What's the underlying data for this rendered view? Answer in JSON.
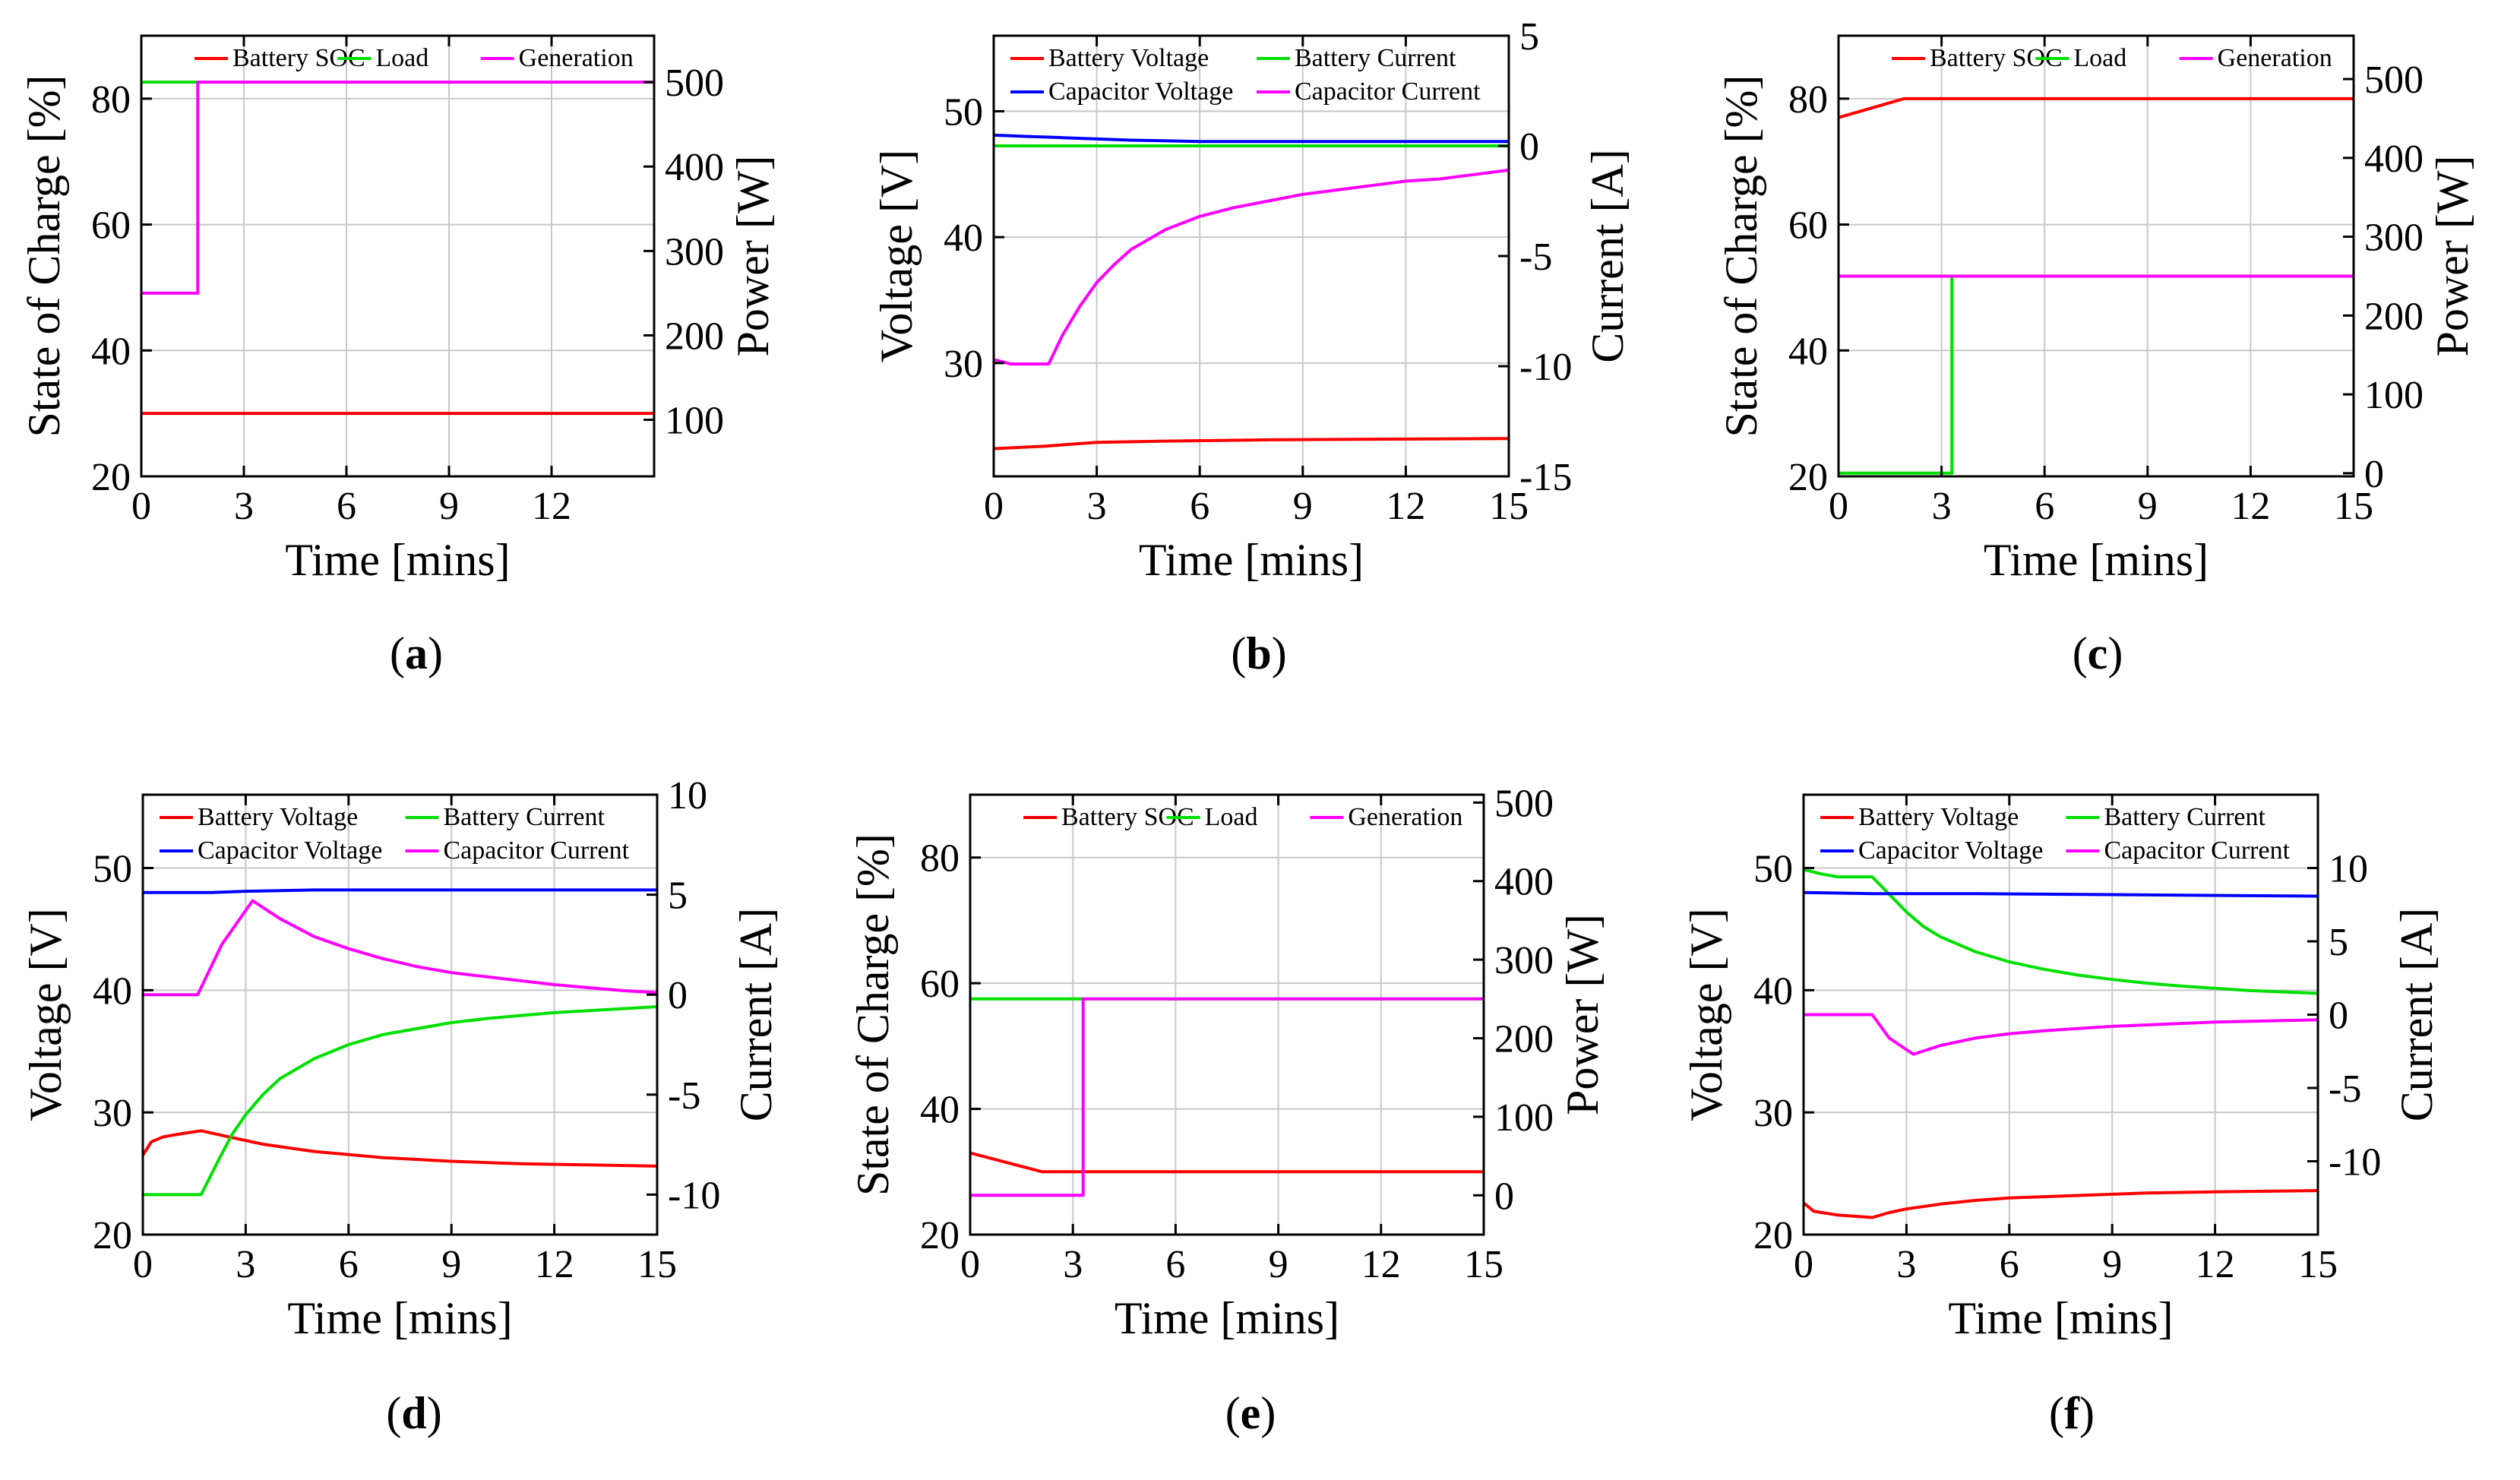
{
  "colors": {
    "red": "#ff0000",
    "green": "#00e000",
    "blue": "#0000ff",
    "magenta": "#ff00ff"
  },
  "chart_data": [
    {
      "id": "a",
      "caption_letter": "a",
      "type": "line",
      "xlabel": "Time  [mins]",
      "ylabel": "State of Charge [%]",
      "y2label": "Power [W]",
      "xlim": [
        0,
        15
      ],
      "xticks": [
        0,
        3,
        6,
        9,
        12
      ],
      "ylim": [
        20,
        90
      ],
      "yticks": [
        20,
        40,
        60,
        80
      ],
      "y2lim": [
        33,
        555
      ],
      "y2ticks": [
        100,
        200,
        300,
        400,
        500
      ],
      "grid": true,
      "legend": {
        "placement": "top",
        "columns": 3
      },
      "series": [
        {
          "name": "Battery SOC",
          "color": "red",
          "axis": "left",
          "x": [
            0,
            15
          ],
          "y": [
            30,
            30
          ]
        },
        {
          "name": "Load",
          "color": "green",
          "axis": "right",
          "x": [
            0,
            1.65
          ],
          "y": [
            500,
            500
          ]
        },
        {
          "name": "Generation",
          "color": "magenta",
          "axis": "right",
          "x": [
            0,
            1.65,
            1.65,
            15
          ],
          "y": [
            250,
            250,
            500,
            500
          ]
        }
      ]
    },
    {
      "id": "b",
      "caption_letter": "b",
      "type": "line",
      "xlabel": "Time  [mins]",
      "ylabel": "Voltage [V]",
      "y2label": "Current [A]",
      "xlim": [
        0,
        15
      ],
      "xticks": [
        0,
        3,
        6,
        9,
        12,
        15
      ],
      "ylim": [
        21,
        56
      ],
      "yticks": [
        30,
        40,
        50
      ],
      "y2lim": [
        -15,
        5
      ],
      "y2ticks": [
        -15,
        -10,
        -5,
        0,
        5
      ],
      "grid": true,
      "legend": {
        "placement": "top",
        "columns": 2
      },
      "series": [
        {
          "name": "Battery Voltage",
          "color": "red",
          "axis": "left",
          "x": [
            0,
            1.5,
            3,
            5,
            8,
            11,
            15
          ],
          "y": [
            23.2,
            23.4,
            23.7,
            23.8,
            23.9,
            23.95,
            24.0
          ]
        },
        {
          "name": "Battery Current",
          "color": "green",
          "axis": "right",
          "x": [
            0,
            15
          ],
          "y": [
            0,
            0
          ]
        },
        {
          "name": "Capacitor Voltage",
          "color": "blue",
          "axis": "left",
          "x": [
            0,
            1,
            2,
            4,
            6,
            9,
            12,
            15
          ],
          "y": [
            48.1,
            48.0,
            47.9,
            47.7,
            47.6,
            47.6,
            47.6,
            47.6
          ]
        },
        {
          "name": "Capacitor Current",
          "color": "magenta",
          "axis": "right",
          "x": [
            0,
            0.5,
            1.6,
            2,
            2.5,
            3,
            3.5,
            4,
            5,
            6,
            7,
            8,
            9,
            10,
            11,
            12,
            13,
            14,
            15
          ],
          "y": [
            -9.7,
            -9.9,
            -9.9,
            -8.6,
            -7.3,
            -6.2,
            -5.4,
            -4.7,
            -3.8,
            -3.2,
            -2.8,
            -2.5,
            -2.2,
            -2.0,
            -1.8,
            -1.6,
            -1.5,
            -1.3,
            -1.1
          ]
        }
      ]
    },
    {
      "id": "c",
      "caption_letter": "c",
      "type": "line",
      "xlabel": "Time  [mins]",
      "ylabel": "State of Charge [%]",
      "y2label": "Power [W]",
      "xlim": [
        0,
        15
      ],
      "xticks": [
        0,
        3,
        6,
        9,
        12,
        15
      ],
      "ylim": [
        20,
        90
      ],
      "yticks": [
        20,
        40,
        60,
        80
      ],
      "y2lim": [
        -4,
        555
      ],
      "y2ticks": [
        0,
        100,
        200,
        300,
        400,
        500
      ],
      "grid": true,
      "legend": {
        "placement": "top",
        "columns": 3
      },
      "series": [
        {
          "name": "Battery SOC",
          "color": "red",
          "axis": "left",
          "x": [
            0,
            1.9,
            15
          ],
          "y": [
            77,
            80,
            80
          ]
        },
        {
          "name": "Load",
          "color": "green",
          "axis": "right",
          "x": [
            0,
            3.3,
            3.3
          ],
          "y": [
            0,
            0,
            250
          ]
        },
        {
          "name": "Generation",
          "color": "magenta",
          "axis": "right",
          "x": [
            0,
            15
          ],
          "y": [
            250,
            250
          ]
        }
      ]
    },
    {
      "id": "d",
      "caption_letter": "d",
      "type": "line",
      "xlabel": "Time  [mins]",
      "ylabel": "Voltage [V]",
      "y2label": "Current [A]",
      "xlim": [
        0,
        15
      ],
      "xticks": [
        0,
        3,
        6,
        9,
        12,
        15
      ],
      "ylim": [
        20,
        56
      ],
      "yticks": [
        20,
        30,
        40,
        50
      ],
      "y2lim": [
        -12,
        10
      ],
      "y2ticks": [
        -10,
        -5,
        0,
        5,
        10
      ],
      "grid": true,
      "legend": {
        "placement": "top",
        "columns": 2
      },
      "series": [
        {
          "name": "Battery Voltage",
          "color": "red",
          "axis": "left",
          "x": [
            0,
            0.25,
            0.6,
            1.0,
            1.7,
            2.5,
            3.5,
            5,
            7,
            9,
            11,
            13,
            15
          ],
          "y": [
            26.5,
            27.6,
            28.0,
            28.2,
            28.5,
            28.0,
            27.4,
            26.8,
            26.3,
            26.0,
            25.8,
            25.7,
            25.6
          ]
        },
        {
          "name": "Battery Current",
          "color": "green",
          "axis": "right",
          "x": [
            0,
            1.7,
            2.2,
            2.6,
            3.0,
            3.5,
            4,
            5,
            6,
            7,
            8,
            9,
            10,
            11,
            12,
            13,
            14,
            15
          ],
          "y": [
            -10.0,
            -10.0,
            -8.3,
            -7.0,
            -6.0,
            -5.0,
            -4.2,
            -3.2,
            -2.5,
            -2.0,
            -1.7,
            -1.4,
            -1.2,
            -1.05,
            -0.9,
            -0.8,
            -0.7,
            -0.6
          ]
        },
        {
          "name": "Capacitor Voltage",
          "color": "blue",
          "axis": "left",
          "x": [
            0,
            2,
            3,
            5,
            8,
            15
          ],
          "y": [
            48.0,
            48.0,
            48.1,
            48.2,
            48.2,
            48.2
          ]
        },
        {
          "name": "Capacitor Current",
          "color": "magenta",
          "axis": "right",
          "x": [
            0,
            1.6,
            2.3,
            3.2,
            4,
            5,
            6,
            7,
            8,
            9,
            10,
            11,
            12,
            13,
            14,
            15
          ],
          "y": [
            0,
            0,
            2.5,
            4.7,
            3.8,
            2.9,
            2.3,
            1.8,
            1.4,
            1.1,
            0.9,
            0.7,
            0.5,
            0.35,
            0.2,
            0.1
          ]
        }
      ]
    },
    {
      "id": "e",
      "caption_letter": "e",
      "type": "line",
      "xlabel": "Time  [mins]",
      "ylabel": "State of Charge [%]",
      "y2label": "Power [W]",
      "xlim": [
        0,
        15
      ],
      "xticks": [
        0,
        3,
        6,
        9,
        12,
        15
      ],
      "ylim": [
        20,
        90
      ],
      "yticks": [
        20,
        40,
        60,
        80
      ],
      "y2lim": [
        -50,
        510
      ],
      "y2ticks": [
        0,
        100,
        200,
        300,
        400,
        500
      ],
      "grid": true,
      "legend": {
        "placement": "top",
        "columns": 3
      },
      "series": [
        {
          "name": "Battery SOC",
          "color": "red",
          "axis": "left",
          "x": [
            0,
            2.1,
            15
          ],
          "y": [
            33,
            30,
            30
          ]
        },
        {
          "name": "Load",
          "color": "green",
          "axis": "right",
          "x": [
            0,
            15
          ],
          "y": [
            250,
            250
          ]
        },
        {
          "name": "Generation",
          "color": "magenta",
          "axis": "right",
          "x": [
            0,
            3.3,
            3.3,
            15
          ],
          "y": [
            0,
            0,
            250,
            250
          ]
        }
      ]
    },
    {
      "id": "f",
      "caption_letter": "f",
      "type": "line",
      "xlabel": "Time  [mins]",
      "ylabel": "Voltage [V]",
      "y2label": "Current [A]",
      "xlim": [
        0,
        15
      ],
      "xticks": [
        0,
        3,
        6,
        9,
        12,
        15
      ],
      "ylim": [
        20,
        56
      ],
      "yticks": [
        20,
        30,
        40,
        50
      ],
      "y2lim": [
        -15,
        15
      ],
      "y2ticks": [
        -10,
        -5,
        0,
        5,
        10
      ],
      "grid": true,
      "legend": {
        "placement": "top",
        "columns": 2
      },
      "series": [
        {
          "name": "Battery Voltage",
          "color": "red",
          "axis": "left",
          "x": [
            0,
            0.3,
            1,
            2,
            2.5,
            3,
            4,
            5,
            6,
            7,
            8,
            9,
            10,
            12,
            15
          ],
          "y": [
            22.6,
            21.9,
            21.6,
            21.4,
            21.8,
            22.1,
            22.5,
            22.8,
            23.0,
            23.1,
            23.2,
            23.3,
            23.4,
            23.5,
            23.6
          ]
        },
        {
          "name": "Battery Current",
          "color": "green",
          "axis": "right",
          "x": [
            0,
            0.5,
            1,
            2,
            2.5,
            3,
            3.5,
            4,
            5,
            6,
            7,
            8,
            9,
            10,
            11,
            12,
            13,
            14,
            15
          ],
          "y": [
            9.9,
            9.6,
            9.4,
            9.4,
            8.2,
            7.0,
            6.0,
            5.3,
            4.3,
            3.6,
            3.1,
            2.7,
            2.4,
            2.15,
            1.95,
            1.8,
            1.65,
            1.55,
            1.45
          ]
        },
        {
          "name": "Capacitor Voltage",
          "color": "blue",
          "axis": "left",
          "x": [
            0,
            2,
            5,
            10,
            15
          ],
          "y": [
            48.0,
            47.9,
            47.9,
            47.8,
            47.7
          ]
        },
        {
          "name": "Capacitor Current",
          "color": "magenta",
          "axis": "right",
          "x": [
            0,
            2,
            2.5,
            3.2,
            4,
            5,
            6,
            7,
            8,
            9,
            10,
            11,
            12,
            13,
            14,
            15
          ],
          "y": [
            0,
            0,
            -1.6,
            -2.7,
            -2.1,
            -1.6,
            -1.3,
            -1.1,
            -0.95,
            -0.8,
            -0.7,
            -0.6,
            -0.5,
            -0.45,
            -0.4,
            -0.35
          ]
        }
      ]
    }
  ]
}
